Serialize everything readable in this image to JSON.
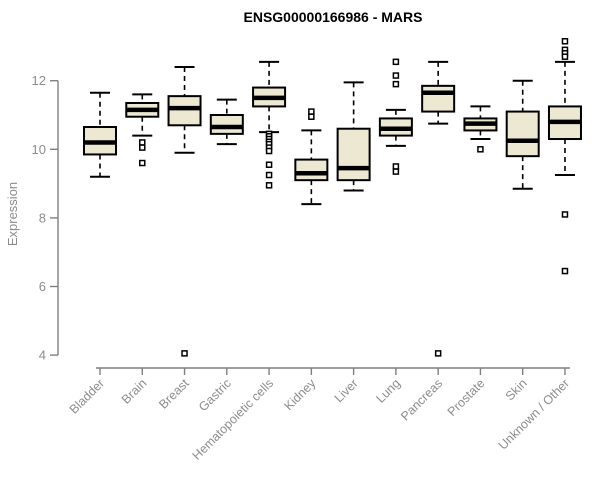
{
  "chart_data": {
    "type": "boxplot",
    "title": "ENSG00000166986 - MARS",
    "ylabel": "Expression",
    "xlabel": "",
    "ylim": [
      4,
      13.3
    ],
    "yticks": [
      4,
      6,
      8,
      10,
      12
    ],
    "grid": false,
    "legend": "none",
    "categories": [
      "Bladder",
      "Brain",
      "Breast",
      "Gastric",
      "Hematopoietic cells",
      "Kidney",
      "Liver",
      "Lung",
      "Pancreas",
      "Prostate",
      "Skin",
      "Unknown / Other"
    ],
    "series": [
      {
        "category": "Bladder",
        "whisker_low": 9.2,
        "q1": 9.85,
        "median": 10.2,
        "q3": 10.65,
        "whisker_high": 11.65,
        "outliers": []
      },
      {
        "category": "Brain",
        "whisker_low": 10.4,
        "q1": 10.95,
        "median": 11.15,
        "q3": 11.35,
        "whisker_high": 11.6,
        "outliers": [
          10.2,
          10.05,
          9.6
        ]
      },
      {
        "category": "Breast",
        "whisker_low": 9.9,
        "q1": 10.7,
        "median": 11.2,
        "q3": 11.55,
        "whisker_high": 12.4,
        "outliers": [
          4.05
        ]
      },
      {
        "category": "Gastric",
        "whisker_low": 10.15,
        "q1": 10.45,
        "median": 10.65,
        "q3": 11.0,
        "whisker_high": 11.45,
        "outliers": []
      },
      {
        "category": "Hematopoietic cells",
        "whisker_low": 10.5,
        "q1": 11.25,
        "median": 11.5,
        "q3": 11.8,
        "whisker_high": 12.55,
        "outliers": [
          10.45,
          10.38,
          10.3,
          10.22,
          10.15,
          10.05,
          9.95,
          9.55,
          9.25,
          8.95
        ]
      },
      {
        "category": "Kidney",
        "whisker_low": 8.4,
        "q1": 9.1,
        "median": 9.3,
        "q3": 9.7,
        "whisker_high": 10.55,
        "outliers": [
          11.1,
          10.95
        ]
      },
      {
        "category": "Liver",
        "whisker_low": 8.8,
        "q1": 9.1,
        "median": 9.45,
        "q3": 10.6,
        "whisker_high": 11.95,
        "outliers": []
      },
      {
        "category": "Lung",
        "whisker_low": 10.1,
        "q1": 10.4,
        "median": 10.6,
        "q3": 10.9,
        "whisker_high": 11.15,
        "outliers": [
          12.55,
          12.15,
          11.9,
          9.5,
          9.35
        ]
      },
      {
        "category": "Pancreas",
        "whisker_low": 10.75,
        "q1": 11.1,
        "median": 11.65,
        "q3": 11.85,
        "whisker_high": 12.55,
        "outliers": [
          4.05
        ]
      },
      {
        "category": "Prostate",
        "whisker_low": 10.3,
        "q1": 10.55,
        "median": 10.75,
        "q3": 10.9,
        "whisker_high": 11.25,
        "outliers": [
          10.0
        ]
      },
      {
        "category": "Skin",
        "whisker_low": 8.85,
        "q1": 9.8,
        "median": 10.25,
        "q3": 11.1,
        "whisker_high": 12.0,
        "outliers": []
      },
      {
        "category": "Unknown / Other",
        "whisker_low": 9.25,
        "q1": 10.3,
        "median": 10.8,
        "q3": 11.25,
        "whisker_high": 12.55,
        "outliers": [
          13.15,
          12.9,
          12.8,
          12.7,
          8.1,
          6.45
        ]
      }
    ],
    "colors": {
      "box_fill": "#EDE8D2",
      "box_stroke": "#000000",
      "median": "#000000",
      "whisker": "#000000",
      "axis": "#7f7f7f",
      "tick_label": "#8c8c8c",
      "title": "#000000",
      "background": "#ffffff"
    }
  }
}
